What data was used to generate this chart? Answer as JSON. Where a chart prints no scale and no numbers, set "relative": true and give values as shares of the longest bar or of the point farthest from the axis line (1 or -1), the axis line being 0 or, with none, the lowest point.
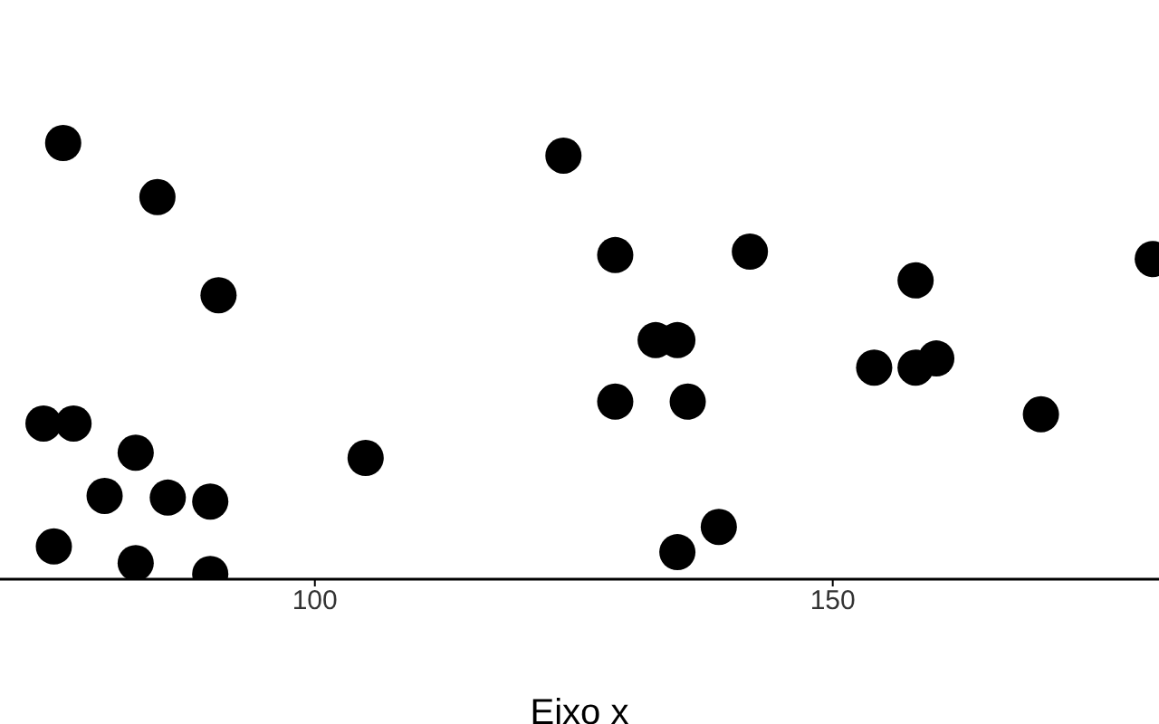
{
  "chart_data": {
    "type": "scatter",
    "xlabel": "Eixo x",
    "relative": true,
    "xlim": [
      69.6,
      181.5
    ],
    "xticks": [
      100,
      150
    ],
    "marker": "circle",
    "series": [
      {
        "color": "#000000",
        "x": [
          75.7,
          84.8,
          90.7,
          73.8,
          76.7,
          82.7,
          79.7,
          85.8,
          89.9,
          74.8,
          82.7,
          89.9,
          104.9,
          124.0,
          129.0,
          142.0,
          132.9,
          135.0,
          129.0,
          136.0,
          135.0,
          139.0,
          158.0,
          154.0,
          158.0,
          160.0,
          170.1,
          180.9
        ],
        "values": [
          1.0,
          0.876,
          0.651,
          0.357,
          0.357,
          0.29,
          0.191,
          0.187,
          0.178,
          0.075,
          0.037,
          0.012,
          0.278,
          0.971,
          0.743,
          0.751,
          0.548,
          0.548,
          0.407,
          0.407,
          0.062,
          0.12,
          0.685,
          0.485,
          0.485,
          0.506,
          0.378,
          0.734
        ]
      }
    ]
  }
}
